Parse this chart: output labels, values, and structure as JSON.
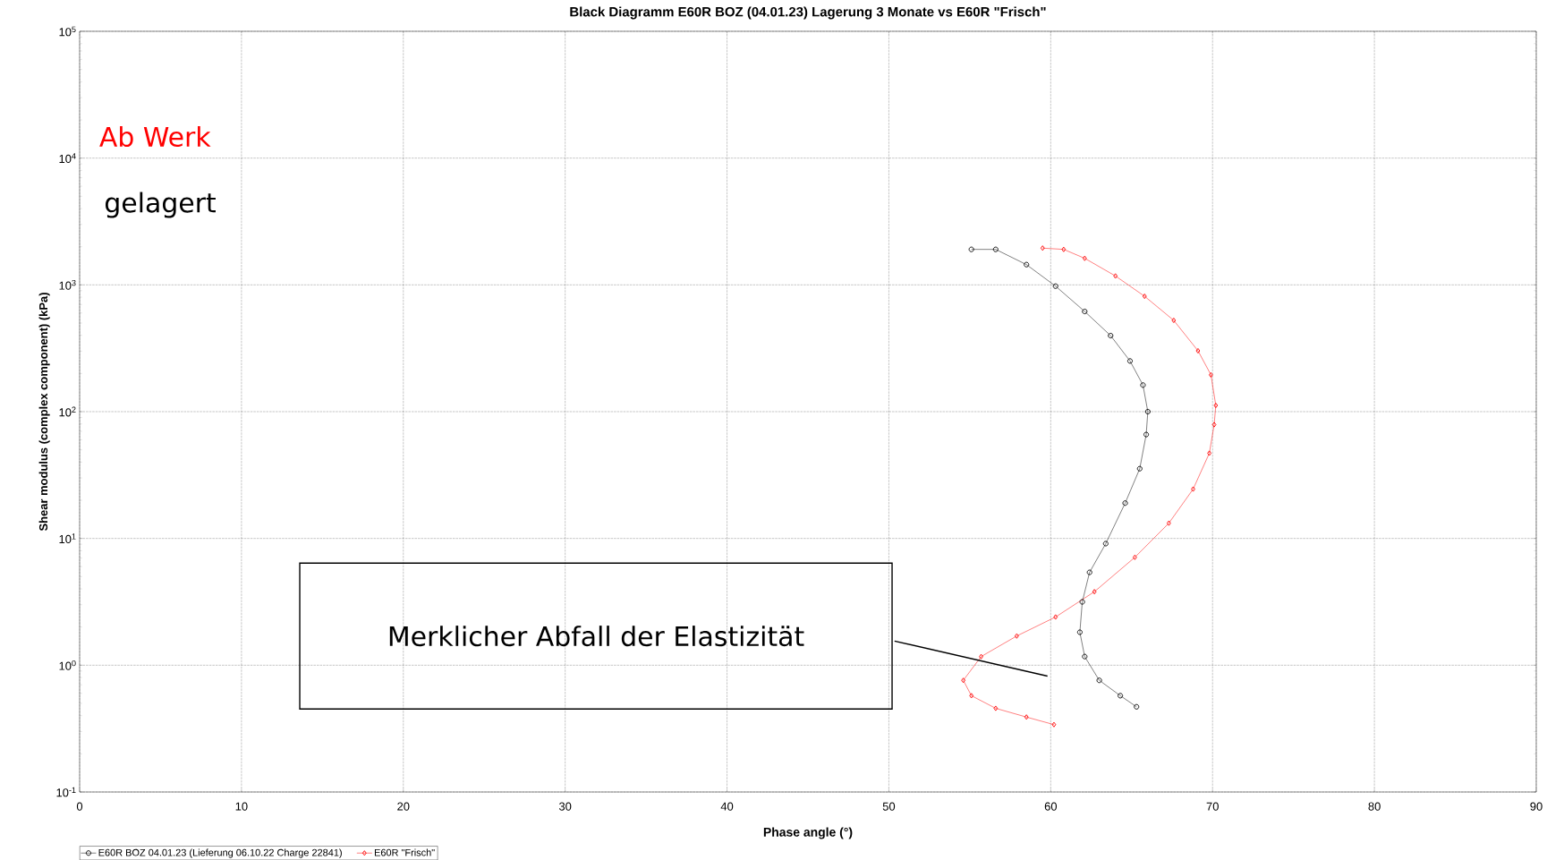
{
  "chart_data": {
    "type": "line",
    "title": "Black Diagramm E60R BOZ (04.01.23) Lagerung 3 Monate vs E60R \"Frisch\"",
    "xlabel": "Phase angle (°)",
    "ylabel": "Shear modulus (complex component) (kPa)",
    "log": "y",
    "grid": true,
    "legend": "bottom",
    "xlim": [
      0,
      90
    ],
    "xticks": [
      0,
      10,
      20,
      30,
      40,
      50,
      60,
      70,
      80,
      90
    ],
    "ylim": [
      0.1,
      100000
    ],
    "yticks": [
      {
        "value": 0.1,
        "label": "10$^{-1}$"
      },
      {
        "value": 1,
        "label": "10$^{0}$"
      },
      {
        "value": 10,
        "label": "10$^{1}$"
      },
      {
        "value": 100,
        "label": "10$^{2}$"
      },
      {
        "value": 1000,
        "label": "10$^{3}$"
      },
      {
        "value": 10000,
        "label": "10$^{4}$"
      },
      {
        "value": 100000,
        "label": "10$^{5}$"
      }
    ],
    "annotations": [
      "Ab Werk",
      "gelagert",
      "Merklicher Abfall der Elastizität"
    ],
    "series": [
      {
        "name": "E60R BOZ 04.01.23 (Lieferung 06.10.22 Charge 22841)",
        "color": "#000000",
        "marker": "circle",
        "x": [
          55.1,
          56.6,
          58.5,
          60.3,
          62.1,
          63.7,
          64.9,
          65.7,
          66.0,
          65.9,
          65.5,
          64.6,
          63.4,
          62.4,
          61.95,
          61.8,
          62.1,
          63.0,
          64.3,
          65.3
        ],
        "values": [
          1905,
          1905,
          1445,
          977,
          617,
          398,
          251,
          162,
          100,
          66,
          35.5,
          19,
          9.1,
          5.4,
          3.16,
          1.82,
          1.17,
          0.76,
          0.575,
          0.47
        ]
      },
      {
        "name": "E60R \"Frisch\"",
        "color": "#ff0000",
        "marker": "diamond",
        "x": [
          59.5,
          60.8,
          62.1,
          64.0,
          65.8,
          67.6,
          69.1,
          69.9,
          70.2,
          70.1,
          69.8,
          68.8,
          67.3,
          65.2,
          62.7,
          60.3,
          57.9,
          55.7,
          54.6,
          55.1,
          56.6,
          58.5,
          60.2
        ],
        "values": [
          1950,
          1905,
          1620,
          1175,
          813,
          525,
          302,
          195,
          112,
          79,
          47,
          24.5,
          13.2,
          7.1,
          3.8,
          2.4,
          1.7,
          1.17,
          0.76,
          0.575,
          0.457,
          0.39,
          0.34
        ]
      }
    ]
  }
}
